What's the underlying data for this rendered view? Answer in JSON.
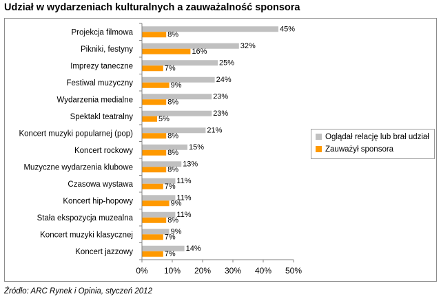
{
  "title": "Udział w wydarzeniach kulturalnych a zauważalność sponsora",
  "source": "Źródło: ARC Rynek i Opinia, styczeń 2012",
  "colors": {
    "series1": "#c0c0c0",
    "series2": "#ff9900"
  },
  "chart_data": {
    "type": "bar",
    "orientation": "horizontal",
    "categories": [
      "Projekcja filmowa",
      "Pikniki, festyny",
      "Imprezy taneczne",
      "Festiwal muzyczny",
      "Wydarzenia medialne",
      "Spektakl teatralny",
      "Koncert muzyki popularnej (pop)",
      "Koncert rockowy",
      "Muzyczne wydarzenia klubowe",
      "Czasowa wystawa",
      "Koncert hip-hopowy",
      "Stała ekspozycja muzealna",
      "Koncert muzyki klasycznej",
      "Koncert jazzowy"
    ],
    "series": [
      {
        "name": "Oglądał relację lub brał udział",
        "values": [
          45,
          32,
          25,
          24,
          23,
          23,
          21,
          15,
          13,
          11,
          11,
          11,
          9,
          14
        ]
      },
      {
        "name": "Zauważył sponsora",
        "values": [
          8,
          16,
          7,
          9,
          8,
          5,
          8,
          8,
          8,
          7,
          9,
          8,
          7,
          7
        ]
      }
    ],
    "xlim": [
      0,
      50
    ],
    "xticks": [
      "0%",
      "10%",
      "20%",
      "30%",
      "40%",
      "50%"
    ],
    "value_suffix": "%",
    "grid": false,
    "legend_position": "right"
  }
}
